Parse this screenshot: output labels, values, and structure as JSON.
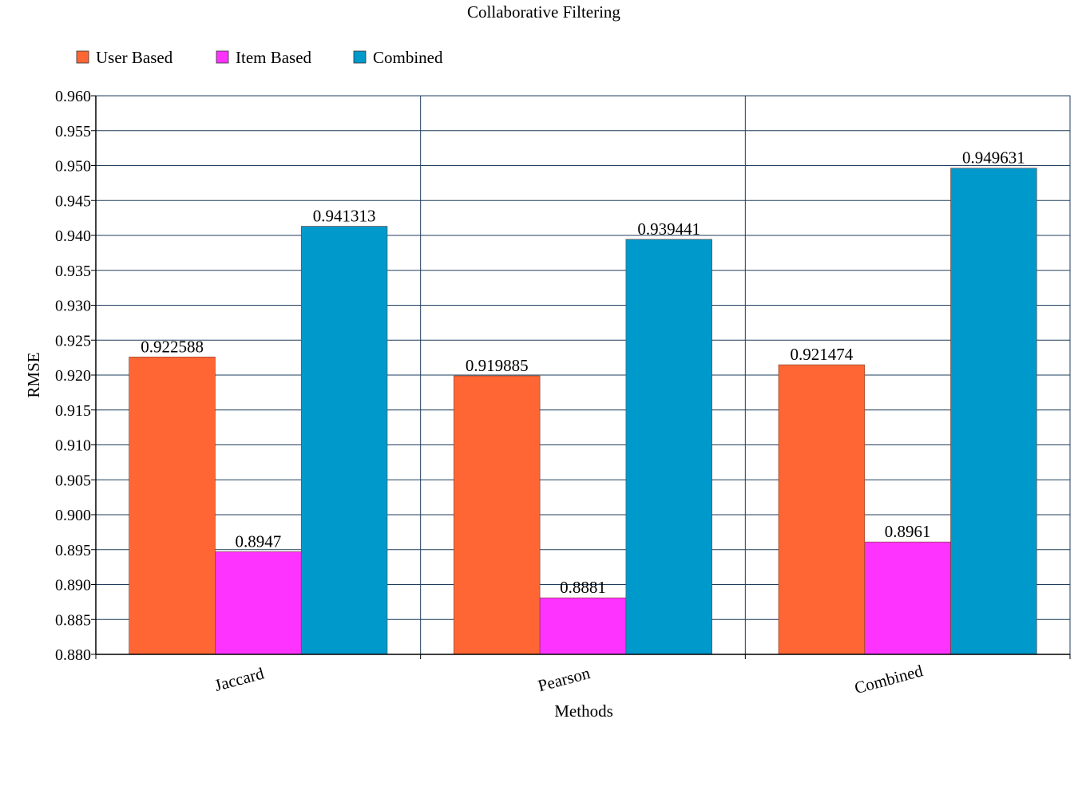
{
  "chart_data": {
    "type": "bar",
    "title": "Collaborative Filtering",
    "xlabel": "Methods",
    "ylabel": "RMSE",
    "ylim": [
      0.88,
      0.96
    ],
    "ytick_step": 0.005,
    "ytick_decimals": 3,
    "grid": true,
    "legend_position": "top-left",
    "categories": [
      "Jaccard",
      "Pearson",
      "Combined"
    ],
    "series": [
      {
        "name": "User Based",
        "color": "#ff6633",
        "values": [
          0.922588,
          0.919885,
          0.921474
        ],
        "labels": [
          "0.922588",
          "0.919885",
          "0.921474"
        ]
      },
      {
        "name": "Item Based",
        "color": "#ff33ff",
        "values": [
          0.8947,
          0.8881,
          0.8961
        ],
        "labels": [
          "0.8947",
          "0.8881",
          "0.8961"
        ]
      },
      {
        "name": "Combined",
        "color": "#0099cc",
        "values": [
          0.941313,
          0.939441,
          0.949631
        ],
        "labels": [
          "0.941313",
          "0.939441",
          "0.949631"
        ]
      }
    ]
  }
}
